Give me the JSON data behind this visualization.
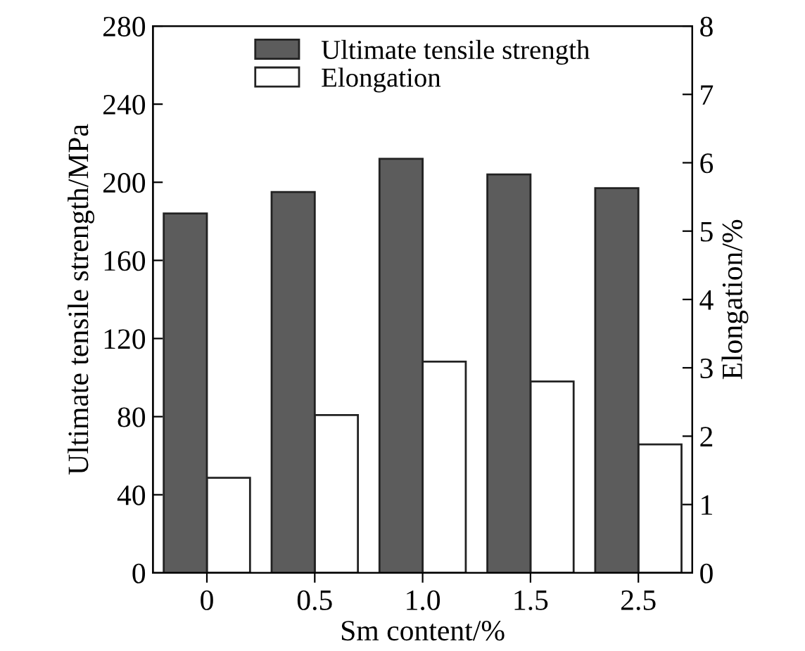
{
  "chart_data": {
    "type": "bar",
    "categories": [
      "0",
      "0.5",
      "1.0",
      "1.5",
      "2.5"
    ],
    "xlabel": "Sm content/%",
    "ylabel": "Ultimate tensile strength/MPa",
    "y2label": "Elongation/%",
    "series": [
      {
        "name": "Ultimate tensile strength",
        "color": "#5c5c5c",
        "values": [
          184,
          195,
          212,
          204,
          197
        ]
      },
      {
        "name": "Elongation",
        "color": "#ffffff",
        "axis": "y2",
        "values": [
          1.39,
          2.31,
          3.09,
          2.8,
          1.88
        ]
      }
    ],
    "ylim": [
      0,
      280
    ],
    "yticks": [
      0,
      40,
      80,
      120,
      160,
      200,
      240,
      280
    ],
    "y2lim": [
      0,
      8
    ],
    "y2ticks": [
      0,
      1,
      2,
      3,
      4,
      5,
      6,
      7,
      8
    ],
    "grid": false,
    "legend": "top"
  }
}
